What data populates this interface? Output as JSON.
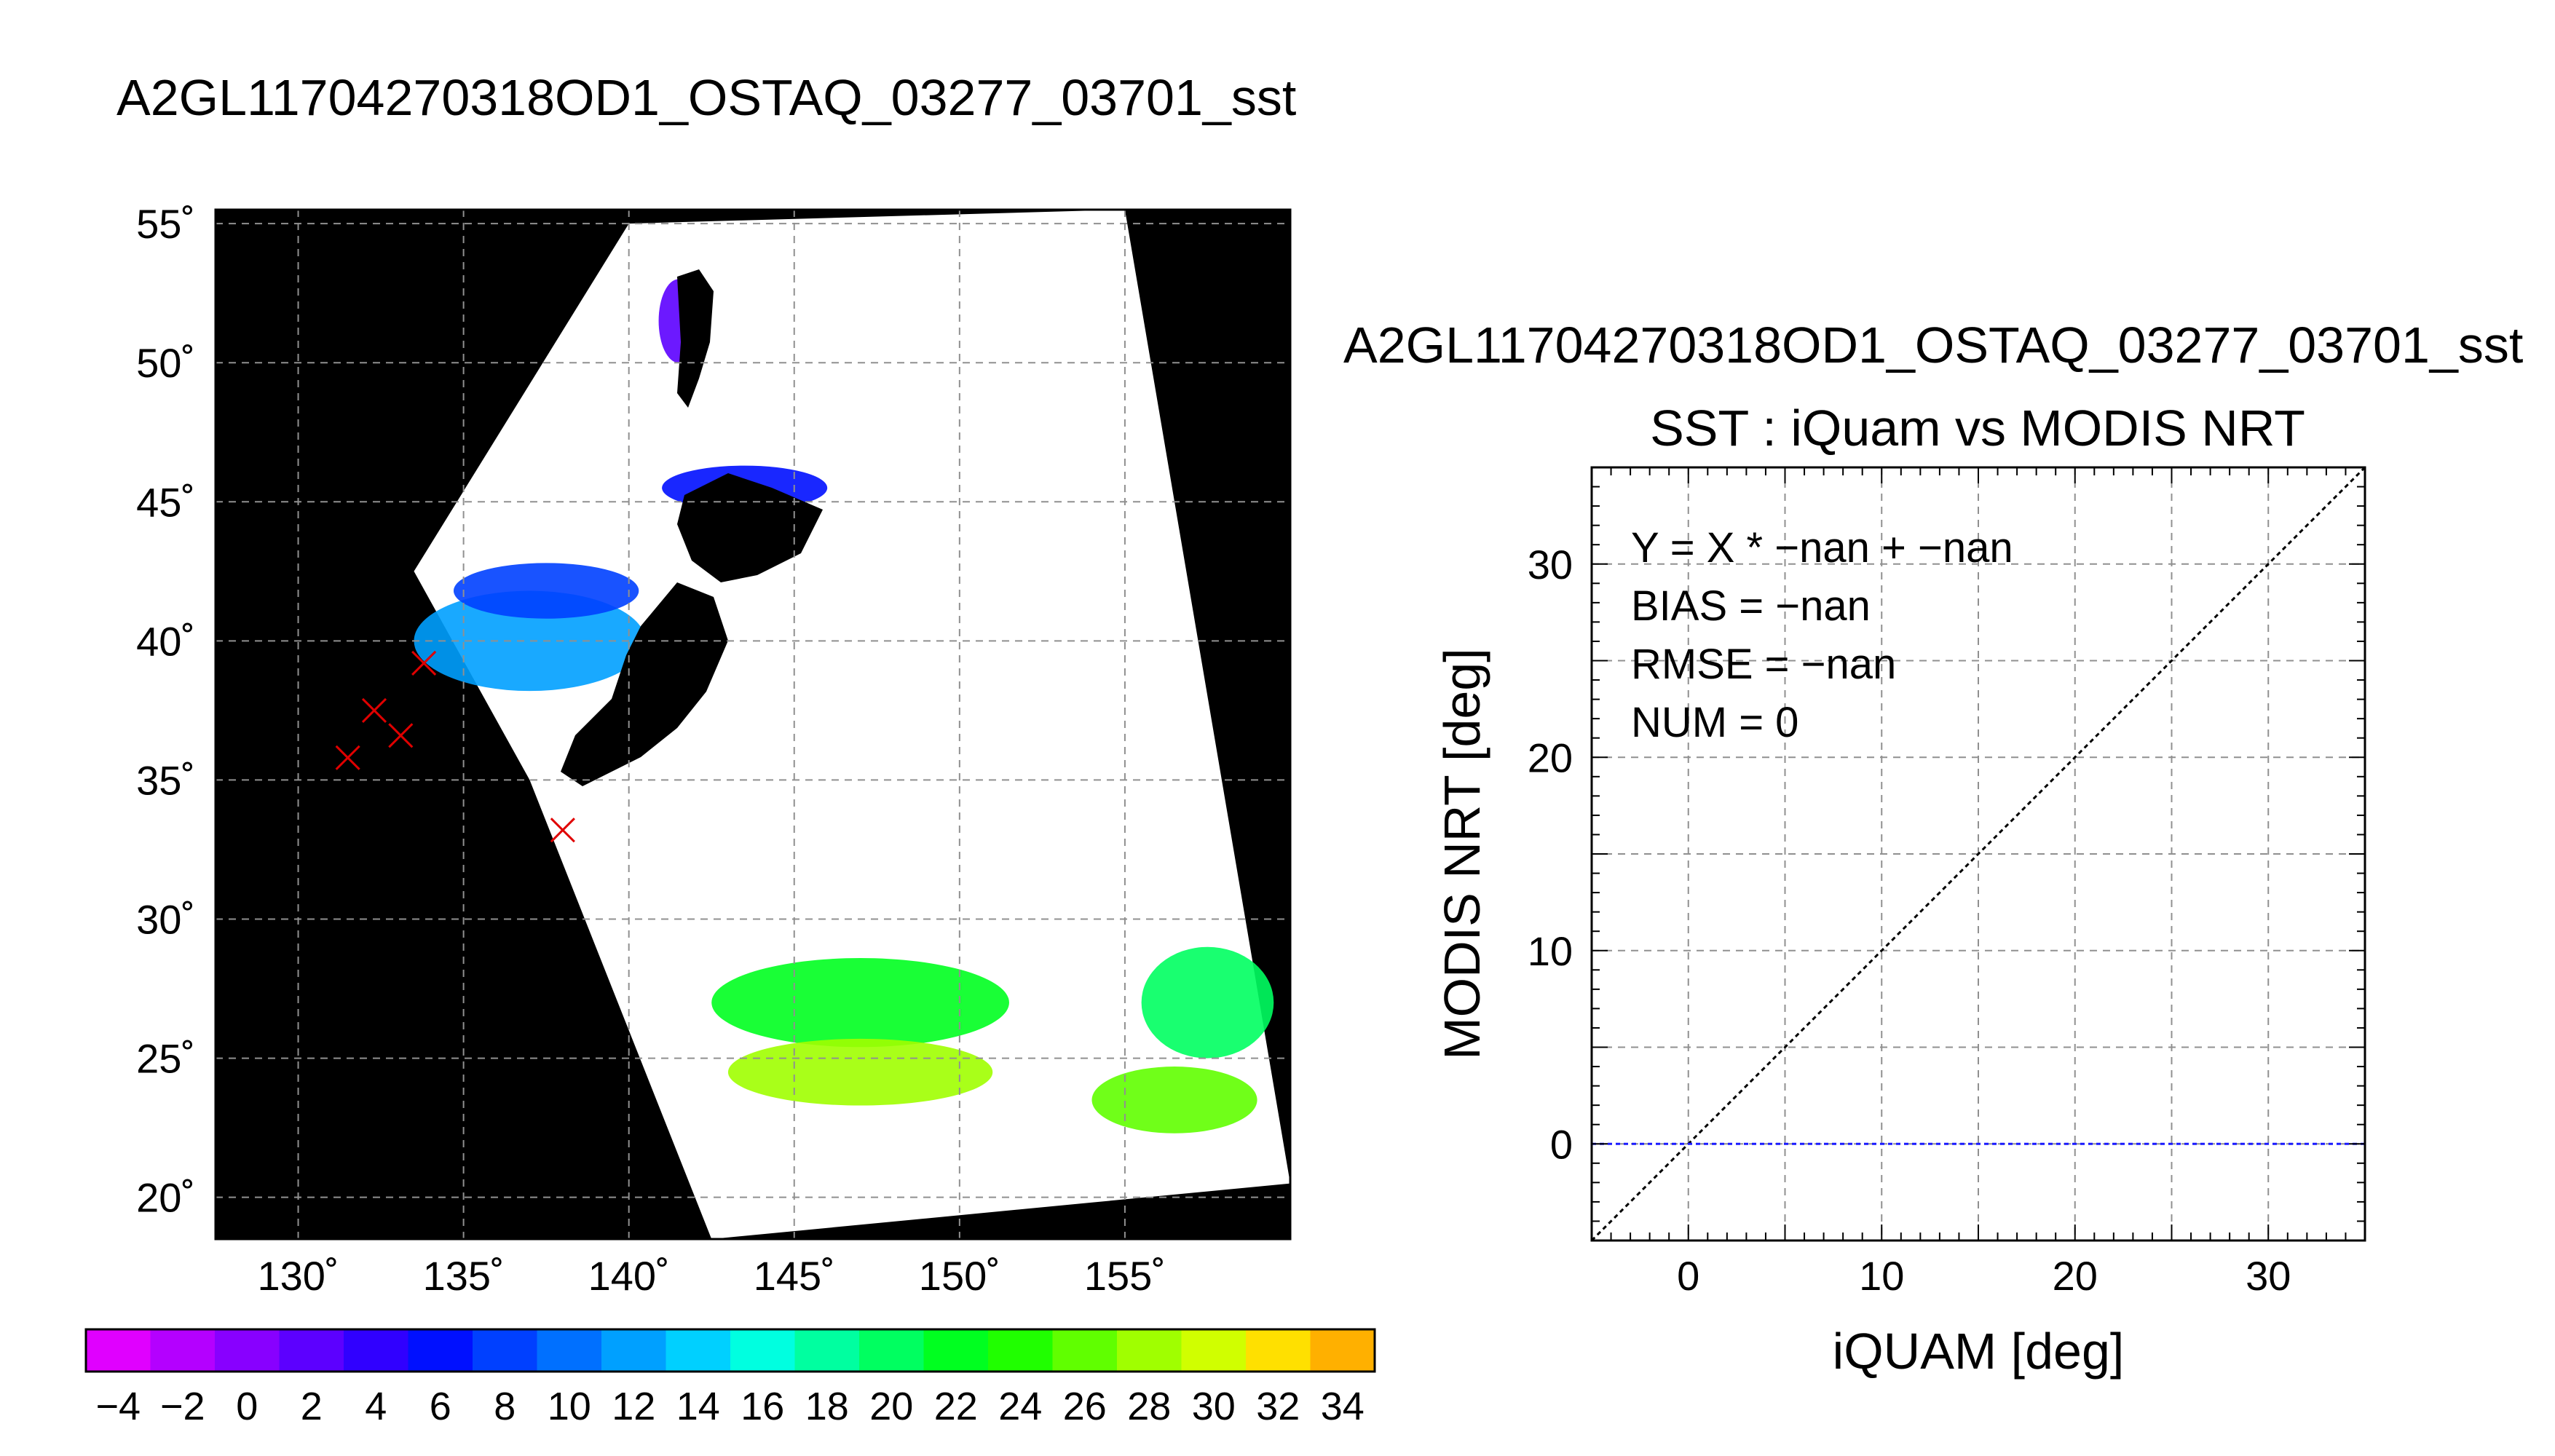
{
  "main_title": "A2GL11704270318OD1_OSTAQ_03277_03701_sst",
  "colors": {
    "map_background": "#000000",
    "swath": "#ffffff",
    "marker": "#e00000",
    "zero_line": "#1a1aff",
    "grid": "#909090",
    "one_to_one": "#000000"
  },
  "chart_data": [
    {
      "type": "heatmap",
      "title": "",
      "x_axis": {
        "min": 127.5,
        "max": 160,
        "ticks": [
          130,
          135,
          140,
          145,
          150,
          155
        ],
        "tick_labels": [
          "130˚",
          "135˚",
          "140˚",
          "145˚",
          "150˚",
          "155˚"
        ]
      },
      "y_axis": {
        "min": 18.5,
        "max": 55.5,
        "ticks": [
          20,
          25,
          30,
          35,
          40,
          45,
          50,
          55
        ],
        "tick_labels": [
          "20˚",
          "25˚",
          "30˚",
          "35˚",
          "40˚",
          "45˚",
          "50˚",
          "55˚"
        ]
      },
      "grid": true,
      "swath_corners": [
        [
          140.0,
          55.0
        ],
        [
          155.0,
          55.5
        ],
        [
          160.0,
          20.5
        ],
        [
          142.5,
          18.5
        ],
        [
          137.0,
          35.0
        ],
        [
          133.5,
          42.5
        ]
      ],
      "sst_regions": [
        {
          "lon": 137.0,
          "lat": 40.0,
          "rx": 3.5,
          "ry": 1.8,
          "value": 12
        },
        {
          "lon": 137.5,
          "lat": 41.8,
          "rx": 2.8,
          "ry": 1.0,
          "value": 7
        },
        {
          "lon": 143.5,
          "lat": 45.5,
          "rx": 2.5,
          "ry": 0.8,
          "value": 5
        },
        {
          "lon": 141.5,
          "lat": 51.5,
          "rx": 0.6,
          "ry": 1.5,
          "value": 2
        },
        {
          "lon": 147.0,
          "lat": 27.0,
          "rx": 4.5,
          "ry": 1.6,
          "value": 22
        },
        {
          "lon": 147.0,
          "lat": 24.5,
          "rx": 4.0,
          "ry": 1.2,
          "value": 27
        },
        {
          "lon": 157.5,
          "lat": 27.0,
          "rx": 2.0,
          "ry": 2.0,
          "value": 20
        },
        {
          "lon": 156.5,
          "lat": 23.5,
          "rx": 2.5,
          "ry": 1.2,
          "value": 26
        }
      ],
      "markers": [
        {
          "lon": 131.5,
          "lat": 35.8
        },
        {
          "lon": 132.3,
          "lat": 37.5
        },
        {
          "lon": 133.1,
          "lat": 36.6
        },
        {
          "lon": 133.8,
          "lat": 39.2
        },
        {
          "lon": 138.0,
          "lat": 33.2
        }
      ]
    },
    {
      "type": "colorbar",
      "min": -5,
      "max": 35,
      "step": 2,
      "colors": [
        "#e000ff",
        "#b400ff",
        "#8800ff",
        "#5c00ff",
        "#3000ff",
        "#0010ff",
        "#0040ff",
        "#0070ff",
        "#00a0ff",
        "#00d0ff",
        "#00ffe0",
        "#00ffa0",
        "#00ff60",
        "#00ff20",
        "#20ff00",
        "#60ff00",
        "#a0ff00",
        "#d0ff00",
        "#ffe000",
        "#ffb000",
        "#ff7000",
        "#ff3000"
      ],
      "tick_values": [
        -4,
        -2,
        0,
        2,
        4,
        6,
        8,
        10,
        12,
        14,
        16,
        18,
        20,
        22,
        24,
        26,
        28,
        30,
        32,
        34
      ],
      "tick_labels": [
        "−4",
        "−2",
        "0",
        "2",
        "4",
        "6",
        "8",
        "10",
        "12",
        "14",
        "16",
        "18",
        "20",
        "22",
        "24",
        "26",
        "28",
        "30",
        "32",
        "34"
      ]
    },
    {
      "type": "scatter",
      "heading": "A2GL11704270318OD1_OSTAQ_03277_03701_sst",
      "title": "SST : iQuam vs MODIS NRT",
      "xlabel": "iQUAM [deg]",
      "ylabel": "MODIS NRT [deg]",
      "xlim": [
        -5,
        35
      ],
      "ylim": [
        -5,
        35
      ],
      "x_ticks": [
        0,
        10,
        20,
        30
      ],
      "y_ticks": [
        0,
        10,
        20,
        30
      ],
      "grid_step": 5,
      "grid": true,
      "points": [],
      "reference_lines": [
        {
          "name": "1:1",
          "x": [
            -5,
            35
          ],
          "y": [
            -5,
            35
          ]
        },
        {
          "name": "zero",
          "x": [
            -5,
            35
          ],
          "y": [
            0,
            0
          ]
        }
      ],
      "annotations": [
        "Y = X * −nan + −nan",
        "BIAS = −nan",
        "RMSE = −nan",
        "NUM = 0"
      ]
    }
  ]
}
